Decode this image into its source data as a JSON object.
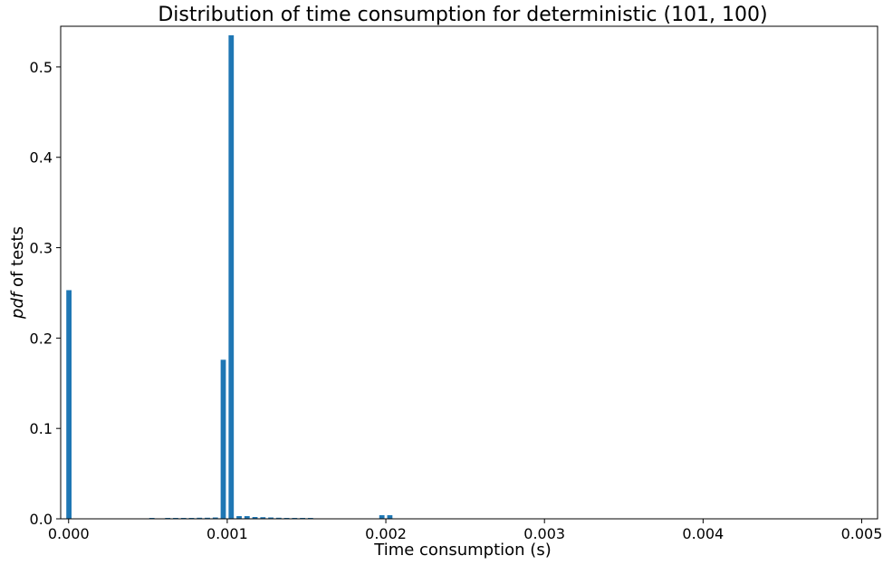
{
  "chart_data": {
    "type": "bar",
    "title": "Distribution of time consumption for deterministic (101, 100)",
    "xlabel": "Time consumption (s)",
    "ylabel_italic": "pdf",
    "ylabel_rest": " of tests",
    "xlim": [
      -5e-05,
      0.0051
    ],
    "ylim": [
      0,
      0.545
    ],
    "bar_width": 3.3e-05,
    "xticks": [
      0.0,
      0.001,
      0.002,
      0.003,
      0.004,
      0.005
    ],
    "xtick_labels": [
      "0.000",
      "0.001",
      "0.002",
      "0.003",
      "0.004",
      "0.005"
    ],
    "yticks": [
      0.0,
      0.1,
      0.2,
      0.3,
      0.4,
      0.5
    ],
    "ytick_labels": [
      "0.0",
      "0.1",
      "0.2",
      "0.3",
      "0.4",
      "0.5"
    ],
    "grid": false,
    "bar_color": "#1f77b4",
    "bars": [
      {
        "x": 2e-06,
        "y": 0.253
      },
      {
        "x": 0.000525,
        "y": 0.0005
      },
      {
        "x": 0.000625,
        "y": 0.0006
      },
      {
        "x": 0.000675,
        "y": 0.0008
      },
      {
        "x": 0.000725,
        "y": 0.001
      },
      {
        "x": 0.000775,
        "y": 0.001
      },
      {
        "x": 0.000825,
        "y": 0.0012
      },
      {
        "x": 0.000875,
        "y": 0.0012
      },
      {
        "x": 0.000925,
        "y": 0.0015
      },
      {
        "x": 0.000975,
        "y": 0.176
      },
      {
        "x": 0.001025,
        "y": 0.535
      },
      {
        "x": 0.001075,
        "y": 0.003
      },
      {
        "x": 0.001125,
        "y": 0.003
      },
      {
        "x": 0.001175,
        "y": 0.002
      },
      {
        "x": 0.001225,
        "y": 0.0018
      },
      {
        "x": 0.001275,
        "y": 0.0015
      },
      {
        "x": 0.001325,
        "y": 0.0012
      },
      {
        "x": 0.001375,
        "y": 0.001
      },
      {
        "x": 0.001425,
        "y": 0.001
      },
      {
        "x": 0.001475,
        "y": 0.0008
      },
      {
        "x": 0.001525,
        "y": 0.0006
      },
      {
        "x": 0.001975,
        "y": 0.004
      },
      {
        "x": 0.002025,
        "y": 0.004
      }
    ]
  }
}
